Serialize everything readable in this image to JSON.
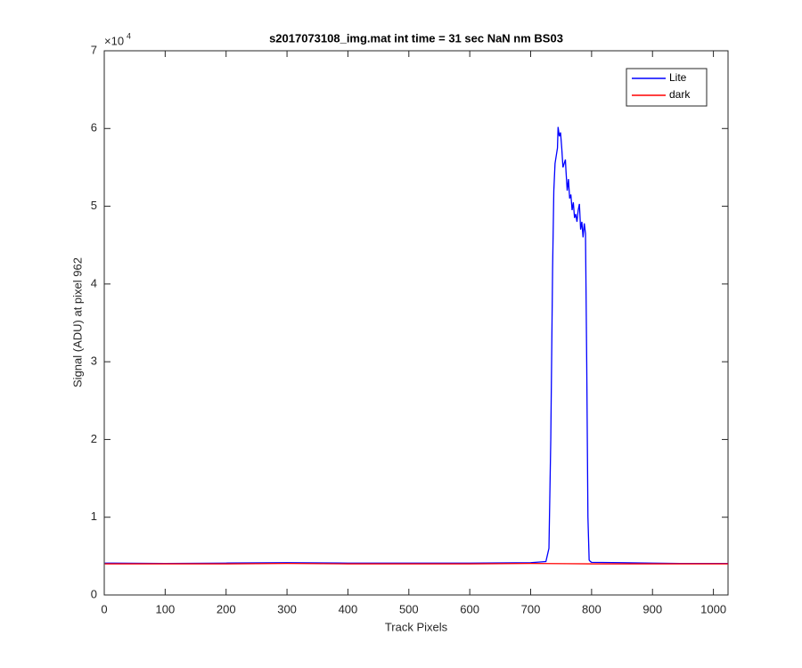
{
  "chart_data": {
    "type": "line",
    "title": "s2017073108_img.mat int time = 31 sec  NaN nm BS03",
    "x_label": "Track Pixels",
    "y_label": "Signal (ADU) at pixel 962",
    "y_multiplier": {
      "base": "×10",
      "exponent": "4"
    },
    "xlim": [
      0,
      1024
    ],
    "xticks": [
      0,
      100,
      200,
      300,
      400,
      500,
      600,
      700,
      800,
      900,
      1000
    ],
    "ylim": [
      0,
      70000
    ],
    "yticks": [
      {
        "value": 0,
        "label": "0"
      },
      {
        "value": 10000,
        "label": "1"
      },
      {
        "value": 20000,
        "label": "2"
      },
      {
        "value": 30000,
        "label": "3"
      },
      {
        "value": 40000,
        "label": "4"
      },
      {
        "value": 50000,
        "label": "5"
      },
      {
        "value": 60000,
        "label": "6"
      },
      {
        "value": 70000,
        "label": "7"
      }
    ],
    "grid": false,
    "legend": "top-right",
    "series": [
      {
        "name": "Lite",
        "color": "#0000ff",
        "x": [
          1,
          100,
          200,
          300,
          400,
          500,
          600,
          700,
          725,
          730,
          733,
          736,
          738,
          740,
          742,
          744,
          745,
          747,
          749,
          751,
          753,
          755,
          757,
          758,
          760,
          762,
          764,
          766,
          768,
          770,
          772,
          774,
          776,
          778,
          780,
          782,
          784,
          786,
          788,
          790,
          792,
          794,
          796,
          798,
          800,
          850,
          900,
          950,
          1024
        ],
        "values": [
          4100,
          4050,
          4100,
          4150,
          4100,
          4100,
          4100,
          4150,
          4300,
          6000,
          20000,
          42000,
          52000,
          55500,
          56500,
          57500,
          60200,
          59000,
          59500,
          57500,
          55000,
          55500,
          56000,
          54500,
          52000,
          53500,
          51000,
          51500,
          49500,
          50500,
          48500,
          49000,
          48000,
          49500,
          50300,
          47000,
          48000,
          46000,
          47800,
          46500,
          30000,
          10000,
          4500,
          4300,
          4200,
          4150,
          4100,
          4050,
          4050
        ]
      },
      {
        "name": "dark",
        "color": "#ff0000",
        "x": [
          1,
          100,
          200,
          300,
          400,
          500,
          600,
          700,
          800,
          900,
          1024
        ],
        "values": [
          4000,
          4000,
          4000,
          4050,
          4000,
          4000,
          4000,
          4050,
          4000,
          4000,
          4000
        ]
      }
    ]
  }
}
